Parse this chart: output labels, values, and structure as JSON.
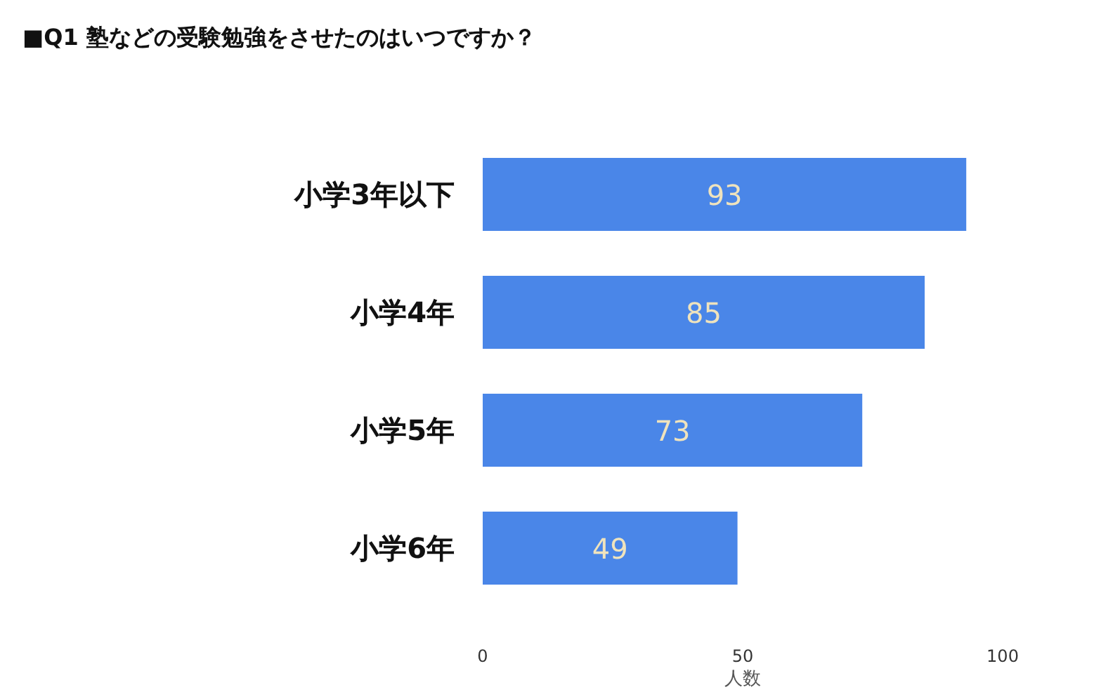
{
  "chart_data": {
    "type": "bar",
    "orientation": "horizontal",
    "title": "■Q1 塾などの受験勉強をさせたのはいつですか？",
    "xlabel": "人数",
    "categories": [
      "小学3年以下",
      "小学4年",
      "小学5年",
      "小学6年"
    ],
    "values": [
      93,
      85,
      73,
      49
    ],
    "color": "#4a86e8",
    "xlim": [
      0,
      100
    ],
    "xticks": [
      0,
      50,
      100
    ],
    "data_labels": true
  }
}
